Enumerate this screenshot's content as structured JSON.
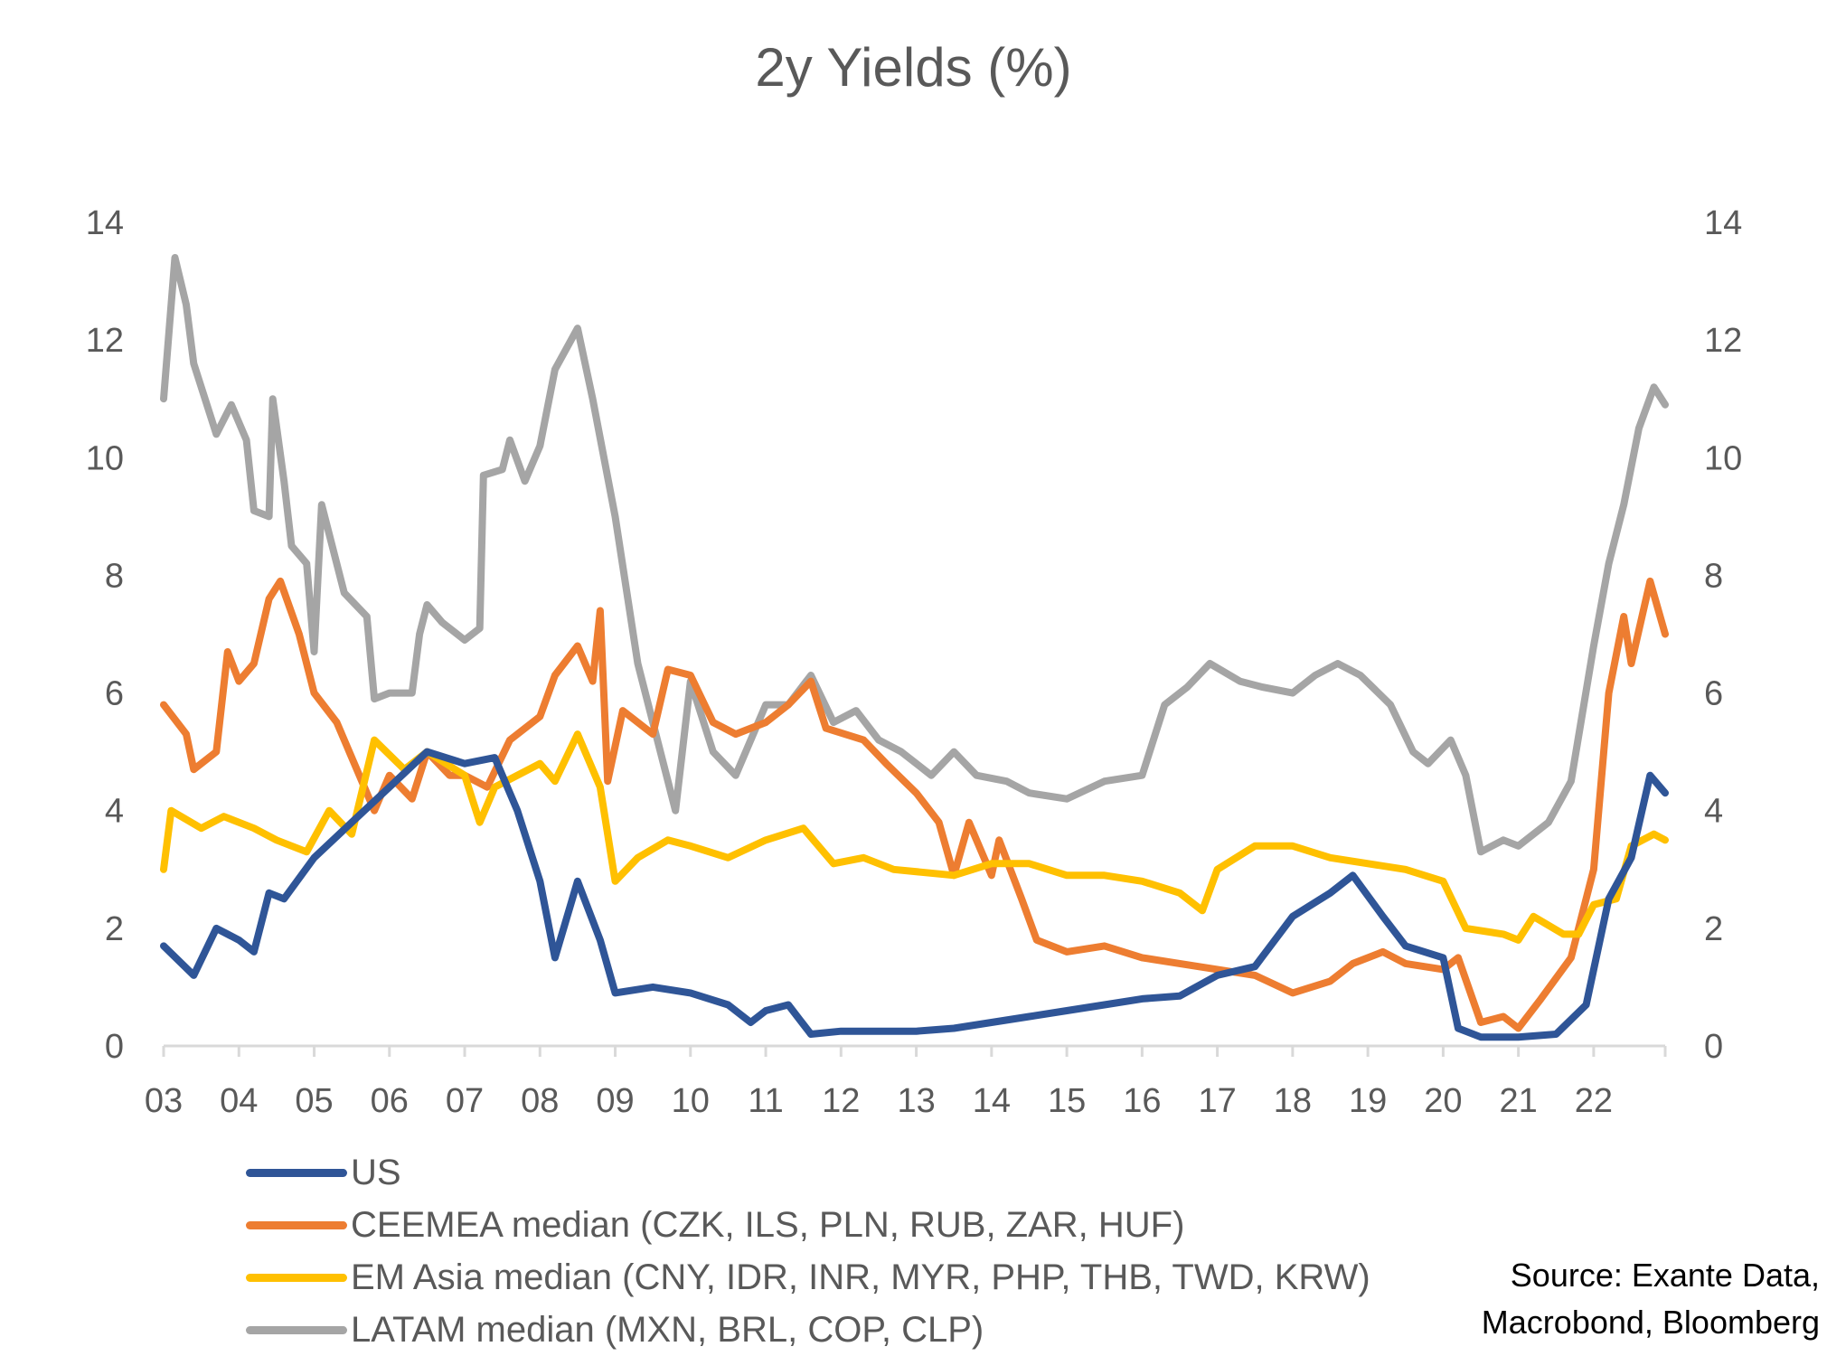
{
  "chart_data": {
    "type": "line",
    "title": "2y Yields (%)",
    "xlabel": "",
    "ylabel": "",
    "ylim": [
      0,
      14
    ],
    "xlim": [
      2003,
      2023
    ],
    "y_ticks": [
      "0",
      "2",
      "4",
      "6",
      "8",
      "10",
      "12",
      "14"
    ],
    "x_ticks": [
      "03",
      "04",
      "05",
      "06",
      "07",
      "08",
      "09",
      "10",
      "11",
      "12",
      "13",
      "14",
      "15",
      "16",
      "17",
      "18",
      "19",
      "20",
      "21",
      "22"
    ],
    "secondary_y_axis": true,
    "grid": false,
    "legend_position": "bottom-left",
    "source": [
      "Source: Exante Data,",
      "Macrobond, Bloomberg"
    ],
    "series": [
      {
        "name": "US",
        "color": "#2F5597",
        "x": [
          2003,
          2003.4,
          2003.7,
          2004,
          2004.2,
          2004.4,
          2004.6,
          2005,
          2005.5,
          2006,
          2006.5,
          2007,
          2007.4,
          2007.7,
          2008,
          2008.2,
          2008.5,
          2008.8,
          2009,
          2009.5,
          2010,
          2010.5,
          2010.8,
          2011,
          2011.3,
          2011.6,
          2012,
          2013,
          2013.5,
          2014,
          2014.5,
          2015,
          2015.5,
          2016,
          2016.5,
          2017,
          2017.5,
          2018,
          2018.5,
          2018.8,
          2019.2,
          2019.5,
          2020,
          2020.2,
          2020.5,
          2021,
          2021.5,
          2021.9,
          2022.2,
          2022.5,
          2022.75,
          2022.95
        ],
        "y": [
          1.7,
          1.2,
          2.0,
          1.8,
          1.6,
          2.6,
          2.5,
          3.2,
          3.8,
          4.4,
          5.0,
          4.8,
          4.9,
          4.0,
          2.8,
          1.5,
          2.8,
          1.8,
          0.9,
          1.0,
          0.9,
          0.7,
          0.4,
          0.6,
          0.7,
          0.2,
          0.25,
          0.25,
          0.3,
          0.4,
          0.5,
          0.6,
          0.7,
          0.8,
          0.85,
          1.2,
          1.35,
          2.2,
          2.6,
          2.9,
          2.2,
          1.7,
          1.5,
          0.3,
          0.15,
          0.15,
          0.2,
          0.7,
          2.5,
          3.2,
          4.6,
          4.3
        ]
      },
      {
        "name": "CEEMEA median (CZK, ILS, PLN, RUB, ZAR, HUF)",
        "color": "#ED7D31",
        "x": [
          2003,
          2003.3,
          2003.4,
          2003.7,
          2003.85,
          2004,
          2004.2,
          2004.4,
          2004.55,
          2004.8,
          2005,
          2005.3,
          2005.6,
          2005.8,
          2006,
          2006.3,
          2006.5,
          2006.8,
          2007,
          2007.3,
          2007.6,
          2008,
          2008.2,
          2008.5,
          2008.7,
          2008.8,
          2008.9,
          2009.1,
          2009.5,
          2009.7,
          2010,
          2010.3,
          2010.6,
          2011,
          2011.3,
          2011.6,
          2011.8,
          2012.3,
          2012.6,
          2013,
          2013.3,
          2013.5,
          2013.7,
          2014,
          2014.1,
          2014.4,
          2014.6,
          2015,
          2015.5,
          2016,
          2016.5,
          2017,
          2017.5,
          2018,
          2018.5,
          2018.8,
          2019.2,
          2019.5,
          2020,
          2020.2,
          2020.5,
          2020.8,
          2021,
          2021.3,
          2021.7,
          2022,
          2022.2,
          2022.4,
          2022.5,
          2022.75,
          2022.95
        ],
        "y": [
          5.8,
          5.3,
          4.7,
          5.0,
          6.7,
          6.2,
          6.5,
          7.6,
          7.9,
          7.0,
          6.0,
          5.5,
          4.6,
          4.0,
          4.6,
          4.2,
          5.0,
          4.6,
          4.6,
          4.4,
          5.2,
          5.6,
          6.3,
          6.8,
          6.2,
          7.4,
          4.5,
          5.7,
          5.3,
          6.4,
          6.3,
          5.5,
          5.3,
          5.5,
          5.8,
          6.2,
          5.4,
          5.2,
          4.8,
          4.3,
          3.8,
          2.9,
          3.8,
          2.9,
          3.5,
          2.5,
          1.8,
          1.6,
          1.7,
          1.5,
          1.4,
          1.3,
          1.2,
          0.9,
          1.1,
          1.4,
          1.6,
          1.4,
          1.3,
          1.5,
          0.4,
          0.5,
          0.3,
          0.8,
          1.5,
          3.0,
          6.0,
          7.3,
          6.5,
          7.9,
          7.0
        ]
      },
      {
        "name": "EM Asia median (CNY, IDR, INR, MYR, PHP, THB, TWD, KRW)",
        "color": "#FFC000",
        "x": [
          2003,
          2003.1,
          2003.5,
          2003.8,
          2004.2,
          2004.5,
          2004.9,
          2005.2,
          2005.5,
          2005.8,
          2006.2,
          2006.5,
          2007,
          2007.2,
          2007.4,
          2007.7,
          2008,
          2008.2,
          2008.5,
          2008.8,
          2009,
          2009.3,
          2009.7,
          2010,
          2010.5,
          2011,
          2011.5,
          2011.9,
          2012.3,
          2012.7,
          2013.5,
          2014,
          2014.5,
          2015,
          2015.5,
          2016,
          2016.5,
          2016.8,
          2017,
          2017.5,
          2018,
          2018.5,
          2019,
          2019.5,
          2020,
          2020.3,
          2020.8,
          2021,
          2021.2,
          2021.6,
          2021.8,
          2022,
          2022.3,
          2022.5,
          2022.8,
          2022.95
        ],
        "y": [
          3.0,
          4.0,
          3.7,
          3.9,
          3.7,
          3.5,
          3.3,
          4.0,
          3.6,
          5.2,
          4.7,
          5.0,
          4.6,
          3.8,
          4.4,
          4.6,
          4.8,
          4.5,
          5.3,
          4.4,
          2.8,
          3.2,
          3.5,
          3.4,
          3.2,
          3.5,
          3.7,
          3.1,
          3.2,
          3.0,
          2.9,
          3.1,
          3.1,
          2.9,
          2.9,
          2.8,
          2.6,
          2.3,
          3.0,
          3.4,
          3.4,
          3.2,
          3.1,
          3.0,
          2.8,
          2.0,
          1.9,
          1.8,
          2.2,
          1.9,
          1.9,
          2.4,
          2.5,
          3.4,
          3.6,
          3.5
        ]
      },
      {
        "name": "LATAM median (MXN, BRL, COP, CLP)",
        "color": "#A5A5A5",
        "x": [
          2003,
          2003.15,
          2003.3,
          2003.4,
          2003.7,
          2003.9,
          2004.1,
          2004.2,
          2004.4,
          2004.45,
          2004.6,
          2004.7,
          2004.9,
          2005,
          2005.1,
          2005.4,
          2005.7,
          2005.8,
          2006,
          2006.3,
          2006.4,
          2006.5,
          2006.7,
          2007,
          2007.2,
          2007.25,
          2007.5,
          2007.6,
          2007.8,
          2008,
          2008.2,
          2008.5,
          2008.7,
          2009,
          2009.3,
          2009.5,
          2009.8,
          2010,
          2010.3,
          2010.6,
          2011,
          2011.3,
          2011.6,
          2011.9,
          2012.2,
          2012.5,
          2012.8,
          2013.2,
          2013.5,
          2013.8,
          2014.2,
          2014.5,
          2015,
          2015.5,
          2016,
          2016.3,
          2016.6,
          2016.9,
          2017.3,
          2017.6,
          2018,
          2018.3,
          2018.6,
          2018.9,
          2019.3,
          2019.6,
          2019.8,
          2020.1,
          2020.3,
          2020.5,
          2020.8,
          2021,
          2021.4,
          2021.7,
          2022,
          2022.2,
          2022.4,
          2022.6,
          2022.8,
          2022.95
        ],
        "y": [
          11.0,
          13.4,
          12.6,
          11.6,
          10.4,
          10.9,
          10.3,
          9.1,
          9.0,
          11.0,
          9.6,
          8.5,
          8.2,
          6.7,
          9.2,
          7.7,
          7.3,
          5.9,
          6.0,
          6.0,
          7.0,
          7.5,
          7.2,
          6.9,
          7.1,
          9.7,
          9.8,
          10.3,
          9.6,
          10.2,
          11.5,
          12.2,
          11.0,
          9.0,
          6.5,
          5.5,
          4.0,
          6.2,
          5.0,
          4.6,
          5.8,
          5.8,
          6.3,
          5.5,
          5.7,
          5.2,
          5.0,
          4.6,
          5.0,
          4.6,
          4.5,
          4.3,
          4.2,
          4.5,
          4.6,
          5.8,
          6.1,
          6.5,
          6.2,
          6.1,
          6.0,
          6.3,
          6.5,
          6.3,
          5.8,
          5.0,
          4.8,
          5.2,
          4.6,
          3.3,
          3.5,
          3.4,
          3.8,
          4.5,
          6.8,
          8.2,
          9.2,
          10.5,
          11.2,
          10.9
        ]
      }
    ]
  }
}
